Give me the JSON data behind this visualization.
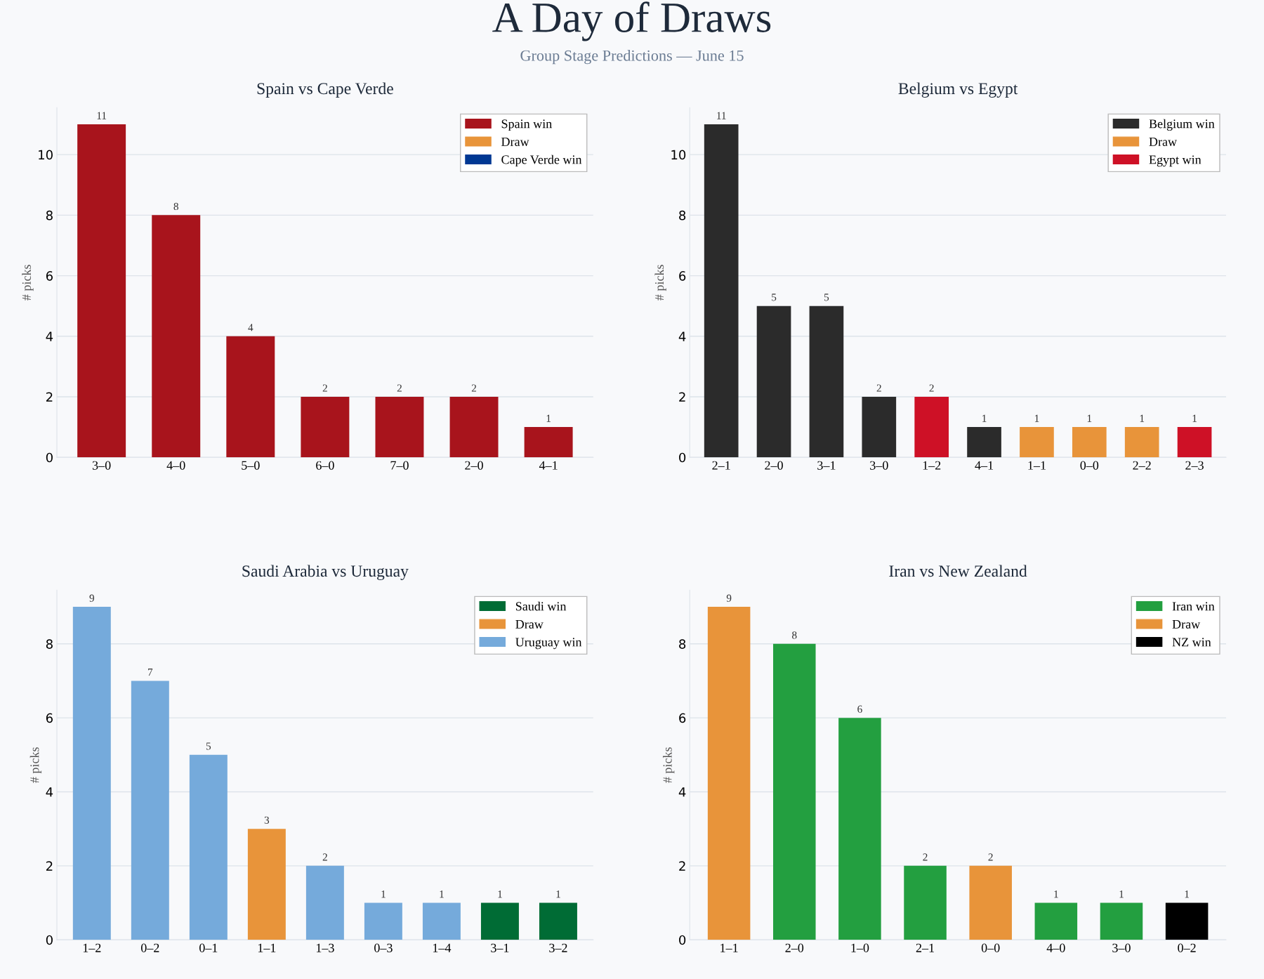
{
  "chart_data": [
    {
      "type": "bar",
      "annotations": [
        "A Day of Draws",
        "Group Stage Predictions — June 15"
      ],
      "title": "Spain vs Cape Verde",
      "ylabel": "# picks",
      "categories": [
        "3–0",
        "4–0",
        "5–0",
        "6–0",
        "7–0",
        "2–0",
        "4–1"
      ],
      "series": [
        {
          "name": "Spain win",
          "color": "#a8141c",
          "values": [
            11,
            8,
            4,
            2,
            2,
            2,
            1
          ]
        },
        {
          "name": "Draw",
          "color": "#e8943a",
          "values": [
            null,
            null,
            null,
            null,
            null,
            null,
            null
          ]
        },
        {
          "name": "Cape Verde win",
          "color": "#003893",
          "values": [
            null,
            null,
            null,
            null,
            null,
            null,
            null
          ]
        }
      ],
      "ylim": [
        0,
        11.55
      ],
      "yticks": [
        0,
        2,
        4,
        6,
        8,
        10
      ],
      "grid": "y",
      "legend": "top right",
      "data_labels": true
    },
    {
      "type": "bar",
      "title": "Belgium vs Egypt",
      "ylabel": "# picks",
      "categories": [
        "2–1",
        "2–0",
        "3–1",
        "3–0",
        "1–2",
        "4–1",
        "1–1",
        "0–0",
        "2–2",
        "2–3"
      ],
      "series": [
        {
          "name": "Belgium win",
          "color": "#2b2b2b",
          "values": [
            11,
            5,
            5,
            2,
            null,
            1,
            null,
            null,
            null,
            null
          ]
        },
        {
          "name": "Draw",
          "color": "#e8943a",
          "values": [
            null,
            null,
            null,
            null,
            null,
            null,
            1,
            1,
            1,
            null
          ]
        },
        {
          "name": "Egypt win",
          "color": "#ce1126",
          "values": [
            null,
            null,
            null,
            null,
            2,
            null,
            null,
            null,
            null,
            1
          ]
        }
      ],
      "ylim": [
        0,
        11.55
      ],
      "yticks": [
        0,
        2,
        4,
        6,
        8,
        10
      ],
      "grid": "y",
      "legend": "top right",
      "data_labels": true
    },
    {
      "type": "bar",
      "title": "Saudi Arabia vs Uruguay",
      "ylabel": "# picks",
      "categories": [
        "1–2",
        "0–2",
        "0–1",
        "1–1",
        "1–3",
        "0–3",
        "1–4",
        "3–1",
        "3–2"
      ],
      "series": [
        {
          "name": "Saudi win",
          "color": "#006c35",
          "values": [
            null,
            null,
            null,
            null,
            null,
            null,
            null,
            1,
            1
          ]
        },
        {
          "name": "Draw",
          "color": "#e8943a",
          "values": [
            null,
            null,
            null,
            3,
            null,
            null,
            null,
            null,
            null
          ]
        },
        {
          "name": "Uruguay win",
          "color": "#75aadb",
          "values": [
            9,
            7,
            5,
            null,
            2,
            1,
            1,
            null,
            null
          ]
        }
      ],
      "ylim": [
        0,
        9.45
      ],
      "yticks": [
        0,
        2,
        4,
        6,
        8
      ],
      "grid": "y",
      "legend": "top right",
      "data_labels": true
    },
    {
      "type": "bar",
      "title": "Iran vs New Zealand",
      "ylabel": "# picks",
      "categories": [
        "1–1",
        "2–0",
        "1–0",
        "2–1",
        "0–0",
        "4–0",
        "3–0",
        "0–2"
      ],
      "series": [
        {
          "name": "Iran win",
          "color": "#239f40",
          "values": [
            null,
            8,
            6,
            2,
            null,
            1,
            1,
            null
          ]
        },
        {
          "name": "Draw",
          "color": "#e8943a",
          "values": [
            9,
            null,
            null,
            null,
            2,
            null,
            null,
            null
          ]
        },
        {
          "name": "NZ win",
          "color": "#000000",
          "values": [
            null,
            null,
            null,
            null,
            null,
            null,
            null,
            1
          ]
        }
      ],
      "ylim": [
        0,
        9.45
      ],
      "yticks": [
        0,
        2,
        4,
        6,
        8
      ],
      "grid": "y",
      "legend": "top right",
      "data_labels": true
    }
  ]
}
